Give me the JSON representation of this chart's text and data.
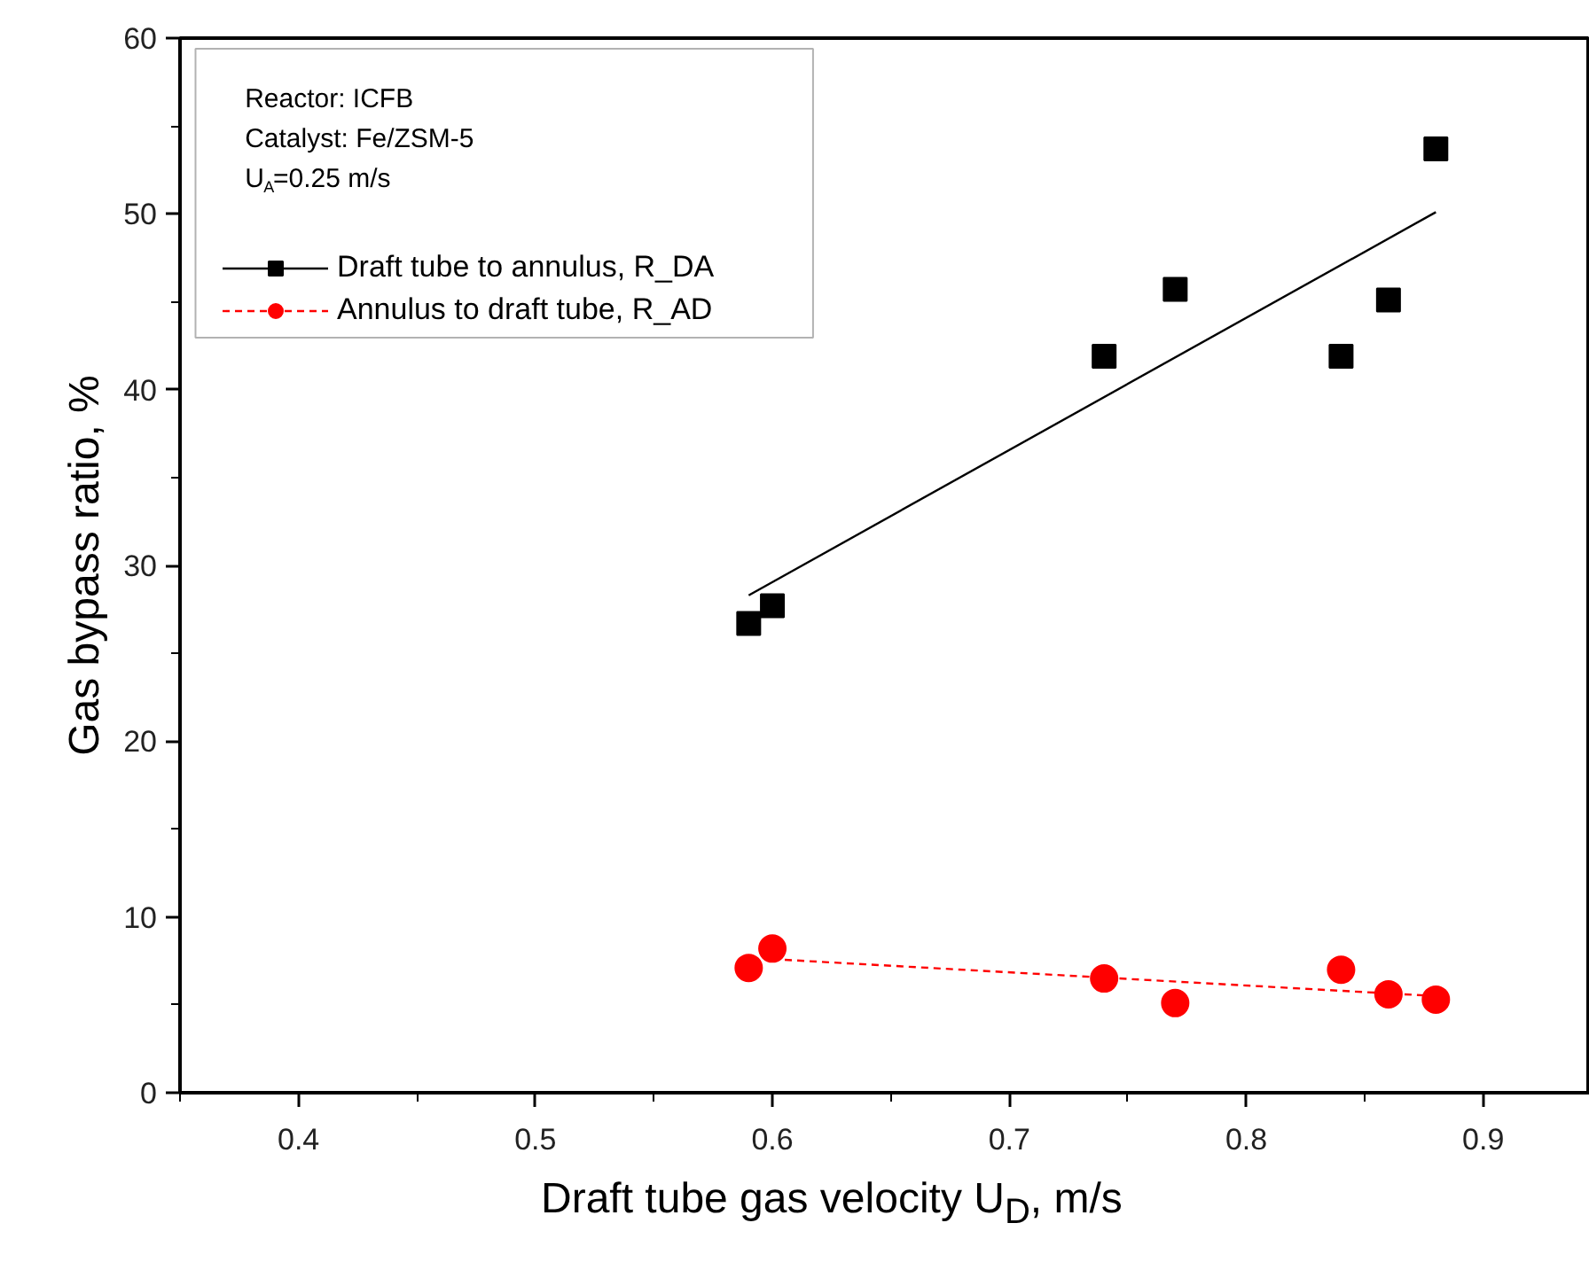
{
  "chart_data": {
    "type": "scatter",
    "xlabel": "Draft tube gas velocity U$_{D}$, m/s",
    "ylabel": "Gas bypass ratio, %",
    "annotations": [
      "Reactor: ICFB",
      "Catalyst: Fe/ZSM-5",
      "U$_{A}$=0.25 m/s"
    ],
    "xlim": [
      0.35,
      0.945
    ],
    "ylim": [
      0,
      60
    ],
    "xticks": [
      0.4,
      0.5,
      0.6,
      0.7,
      0.8,
      0.9
    ],
    "yticks": [
      0,
      10,
      20,
      30,
      40,
      50,
      60
    ],
    "grid": false,
    "legend": "top left",
    "series": [
      {
        "name": "Draft tube to annulus, R_DA",
        "marker": "square",
        "color": "#000000",
        "x": [
          0.59,
          0.6,
          0.74,
          0.77,
          0.84,
          0.86,
          0.88
        ],
        "values": [
          26.7,
          27.7,
          41.9,
          45.7,
          41.9,
          45.1,
          53.7
        ]
      },
      {
        "type": "line",
        "line_style": "solid",
        "color": "#000000",
        "x": [
          0.59,
          0.88
        ],
        "values": [
          28.3,
          50.1
        ]
      },
      {
        "name": "Annulus to draft tube, R_AD",
        "marker": "circle",
        "color": "#ff0000",
        "x": [
          0.59,
          0.6,
          0.74,
          0.77,
          0.84,
          0.86,
          0.88
        ],
        "values": [
          7.1,
          8.2,
          6.5,
          5.1,
          7.0,
          5.6,
          5.3
        ]
      },
      {
        "type": "line",
        "line_style": "dashed",
        "color": "#ff0000",
        "x": [
          0.6,
          0.88
        ],
        "values": [
          7.6,
          5.5
        ]
      }
    ]
  }
}
